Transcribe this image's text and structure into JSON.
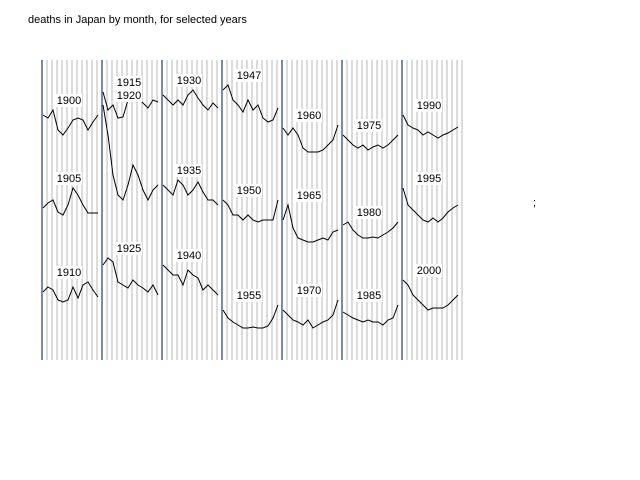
{
  "chart_data": {
    "type": "line",
    "title": "deaths in Japan by month, for selected years",
    "note": ";",
    "ylim": [
      0,
      300
    ],
    "color": "#000000",
    "grid": true,
    "series": [
      {
        "name": "1900",
        "values": [
          245,
          242,
          250,
          230,
          225,
          232,
          240,
          242,
          240,
          230,
          238,
          245
        ]
      },
      {
        "name": "1905",
        "values": [
          152,
          157,
          160,
          148,
          145,
          155,
          172,
          165,
          155,
          147,
          147,
          147
        ]
      },
      {
        "name": "1910",
        "values": [
          68,
          73,
          70,
          60,
          58,
          60,
          73,
          62,
          75,
          78,
          70,
          63
        ]
      },
      {
        "name": "1915",
        "values": [
          268,
          250,
          255,
          242,
          243,
          260,
          264,
          262,
          257,
          252,
          260,
          258
        ]
      },
      {
        "name": "1920",
        "values": [
          255,
          225,
          185,
          165,
          160,
          175,
          195,
          185,
          170,
          160,
          170,
          175
        ]
      },
      {
        "name": "1925",
        "values": [
          95,
          102,
          98,
          78,
          75,
          72,
          80,
          75,
          72,
          68,
          75,
          65
        ]
      },
      {
        "name": "1930",
        "values": [
          265,
          260,
          255,
          260,
          255,
          265,
          270,
          262,
          255,
          250,
          257,
          252
        ]
      },
      {
        "name": "1935",
        "values": [
          175,
          170,
          165,
          180,
          175,
          165,
          170,
          178,
          168,
          160,
          160,
          155
        ]
      },
      {
        "name": "1940",
        "values": [
          95,
          90,
          85,
          85,
          75,
          90,
          85,
          82,
          70,
          75,
          70,
          65
        ]
      },
      {
        "name": "1947",
        "values": [
          270,
          275,
          260,
          255,
          248,
          260,
          250,
          255,
          242,
          238,
          240,
          252
        ]
      },
      {
        "name": "1950",
        "values": [
          160,
          155,
          145,
          145,
          140,
          145,
          140,
          138,
          140,
          140,
          140,
          160
        ]
      },
      {
        "name": "1955",
        "values": [
          50,
          42,
          38,
          35,
          32,
          32,
          33,
          32,
          32,
          34,
          42,
          55
        ]
      },
      {
        "name": "1960",
        "values": [
          232,
          225,
          232,
          225,
          212,
          208,
          208,
          208,
          210,
          215,
          220,
          235
        ]
      },
      {
        "name": "1965",
        "values": [
          140,
          155,
          132,
          122,
          120,
          118,
          118,
          120,
          122,
          120,
          128,
          130
        ]
      },
      {
        "name": "1970",
        "values": [
          50,
          45,
          40,
          38,
          35,
          40,
          32,
          35,
          38,
          40,
          45,
          60
        ]
      },
      {
        "name": "1975",
        "values": [
          225,
          220,
          215,
          212,
          215,
          210,
          213,
          215,
          212,
          215,
          220,
          225
        ]
      },
      {
        "name": "1980",
        "values": [
          135,
          138,
          130,
          125,
          122,
          122,
          123,
          122,
          125,
          128,
          132,
          138
        ]
      },
      {
        "name": "1985",
        "values": [
          48,
          45,
          42,
          40,
          38,
          40,
          38,
          38,
          35,
          40,
          42,
          55
        ]
      },
      {
        "name": "1990",
        "values": [
          245,
          235,
          232,
          230,
          225,
          228,
          225,
          222,
          225,
          227,
          230,
          233
        ]
      },
      {
        "name": "1995",
        "values": [
          172,
          155,
          150,
          145,
          140,
          138,
          142,
          138,
          142,
          148,
          152,
          155
        ]
      },
      {
        "name": "2000",
        "values": [
          80,
          75,
          65,
          60,
          55,
          50,
          52,
          52,
          52,
          55,
          60,
          65
        ]
      }
    ]
  }
}
